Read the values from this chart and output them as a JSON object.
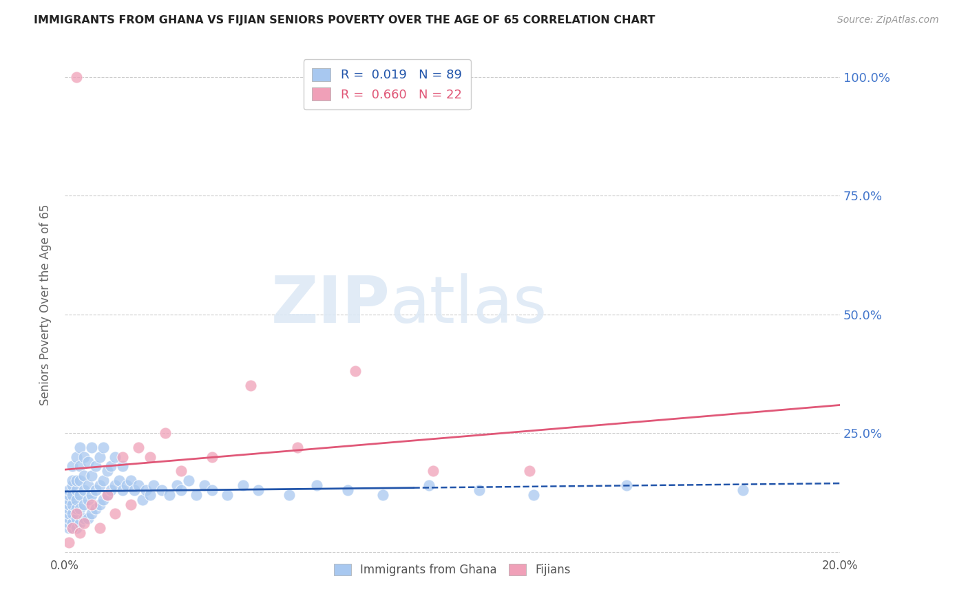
{
  "title": "IMMIGRANTS FROM GHANA VS FIJIAN SENIORS POVERTY OVER THE AGE OF 65 CORRELATION CHART",
  "source": "Source: ZipAtlas.com",
  "ylabel": "Seniors Poverty Over the Age of 65",
  "xlim": [
    0.0,
    0.2
  ],
  "ylim": [
    -0.01,
    1.05
  ],
  "ghana_R": 0.019,
  "ghana_N": 89,
  "fijian_R": 0.66,
  "fijian_N": 22,
  "ghana_color": "#a8c8f0",
  "fijian_color": "#f0a0b8",
  "ghana_line_color": "#2255aa",
  "fijian_line_color": "#e05878",
  "watermark_zip": "ZIP",
  "watermark_atlas": "atlas",
  "ghana_x": [
    0.001,
    0.001,
    0.001,
    0.001,
    0.001,
    0.001,
    0.001,
    0.001,
    0.001,
    0.002,
    0.002,
    0.002,
    0.002,
    0.002,
    0.002,
    0.002,
    0.002,
    0.003,
    0.003,
    0.003,
    0.003,
    0.003,
    0.003,
    0.003,
    0.004,
    0.004,
    0.004,
    0.004,
    0.004,
    0.004,
    0.005,
    0.005,
    0.005,
    0.005,
    0.005,
    0.006,
    0.006,
    0.006,
    0.006,
    0.007,
    0.007,
    0.007,
    0.007,
    0.008,
    0.008,
    0.008,
    0.009,
    0.009,
    0.009,
    0.01,
    0.01,
    0.01,
    0.011,
    0.011,
    0.012,
    0.012,
    0.013,
    0.013,
    0.014,
    0.015,
    0.015,
    0.016,
    0.017,
    0.018,
    0.019,
    0.02,
    0.021,
    0.022,
    0.023,
    0.025,
    0.027,
    0.029,
    0.03,
    0.032,
    0.034,
    0.036,
    0.038,
    0.042,
    0.046,
    0.05,
    0.058,
    0.065,
    0.073,
    0.082,
    0.094,
    0.107,
    0.121,
    0.145,
    0.175
  ],
  "ghana_y": [
    0.05,
    0.06,
    0.07,
    0.08,
    0.09,
    0.1,
    0.11,
    0.12,
    0.13,
    0.05,
    0.06,
    0.08,
    0.1,
    0.12,
    0.14,
    0.15,
    0.18,
    0.05,
    0.07,
    0.09,
    0.11,
    0.13,
    0.15,
    0.2,
    0.06,
    0.09,
    0.12,
    0.15,
    0.18,
    0.22,
    0.07,
    0.1,
    0.13,
    0.16,
    0.2,
    0.07,
    0.11,
    0.14,
    0.19,
    0.08,
    0.12,
    0.16,
    0.22,
    0.09,
    0.13,
    0.18,
    0.1,
    0.14,
    0.2,
    0.11,
    0.15,
    0.22,
    0.12,
    0.17,
    0.13,
    0.18,
    0.14,
    0.2,
    0.15,
    0.13,
    0.18,
    0.14,
    0.15,
    0.13,
    0.14,
    0.11,
    0.13,
    0.12,
    0.14,
    0.13,
    0.12,
    0.14,
    0.13,
    0.15,
    0.12,
    0.14,
    0.13,
    0.12,
    0.14,
    0.13,
    0.12,
    0.14,
    0.13,
    0.12,
    0.14,
    0.13,
    0.12,
    0.14,
    0.13
  ],
  "fijian_x": [
    0.001,
    0.002,
    0.003,
    0.004,
    0.005,
    0.007,
    0.009,
    0.011,
    0.013,
    0.015,
    0.017,
    0.019,
    0.022,
    0.026,
    0.03,
    0.038,
    0.048,
    0.06,
    0.075,
    0.095,
    0.12,
    0.003
  ],
  "fijian_y": [
    0.02,
    0.05,
    0.08,
    0.04,
    0.06,
    0.1,
    0.05,
    0.12,
    0.08,
    0.2,
    0.1,
    0.22,
    0.2,
    0.25,
    0.17,
    0.2,
    0.35,
    0.22,
    0.38,
    0.17,
    0.17,
    1.0
  ]
}
